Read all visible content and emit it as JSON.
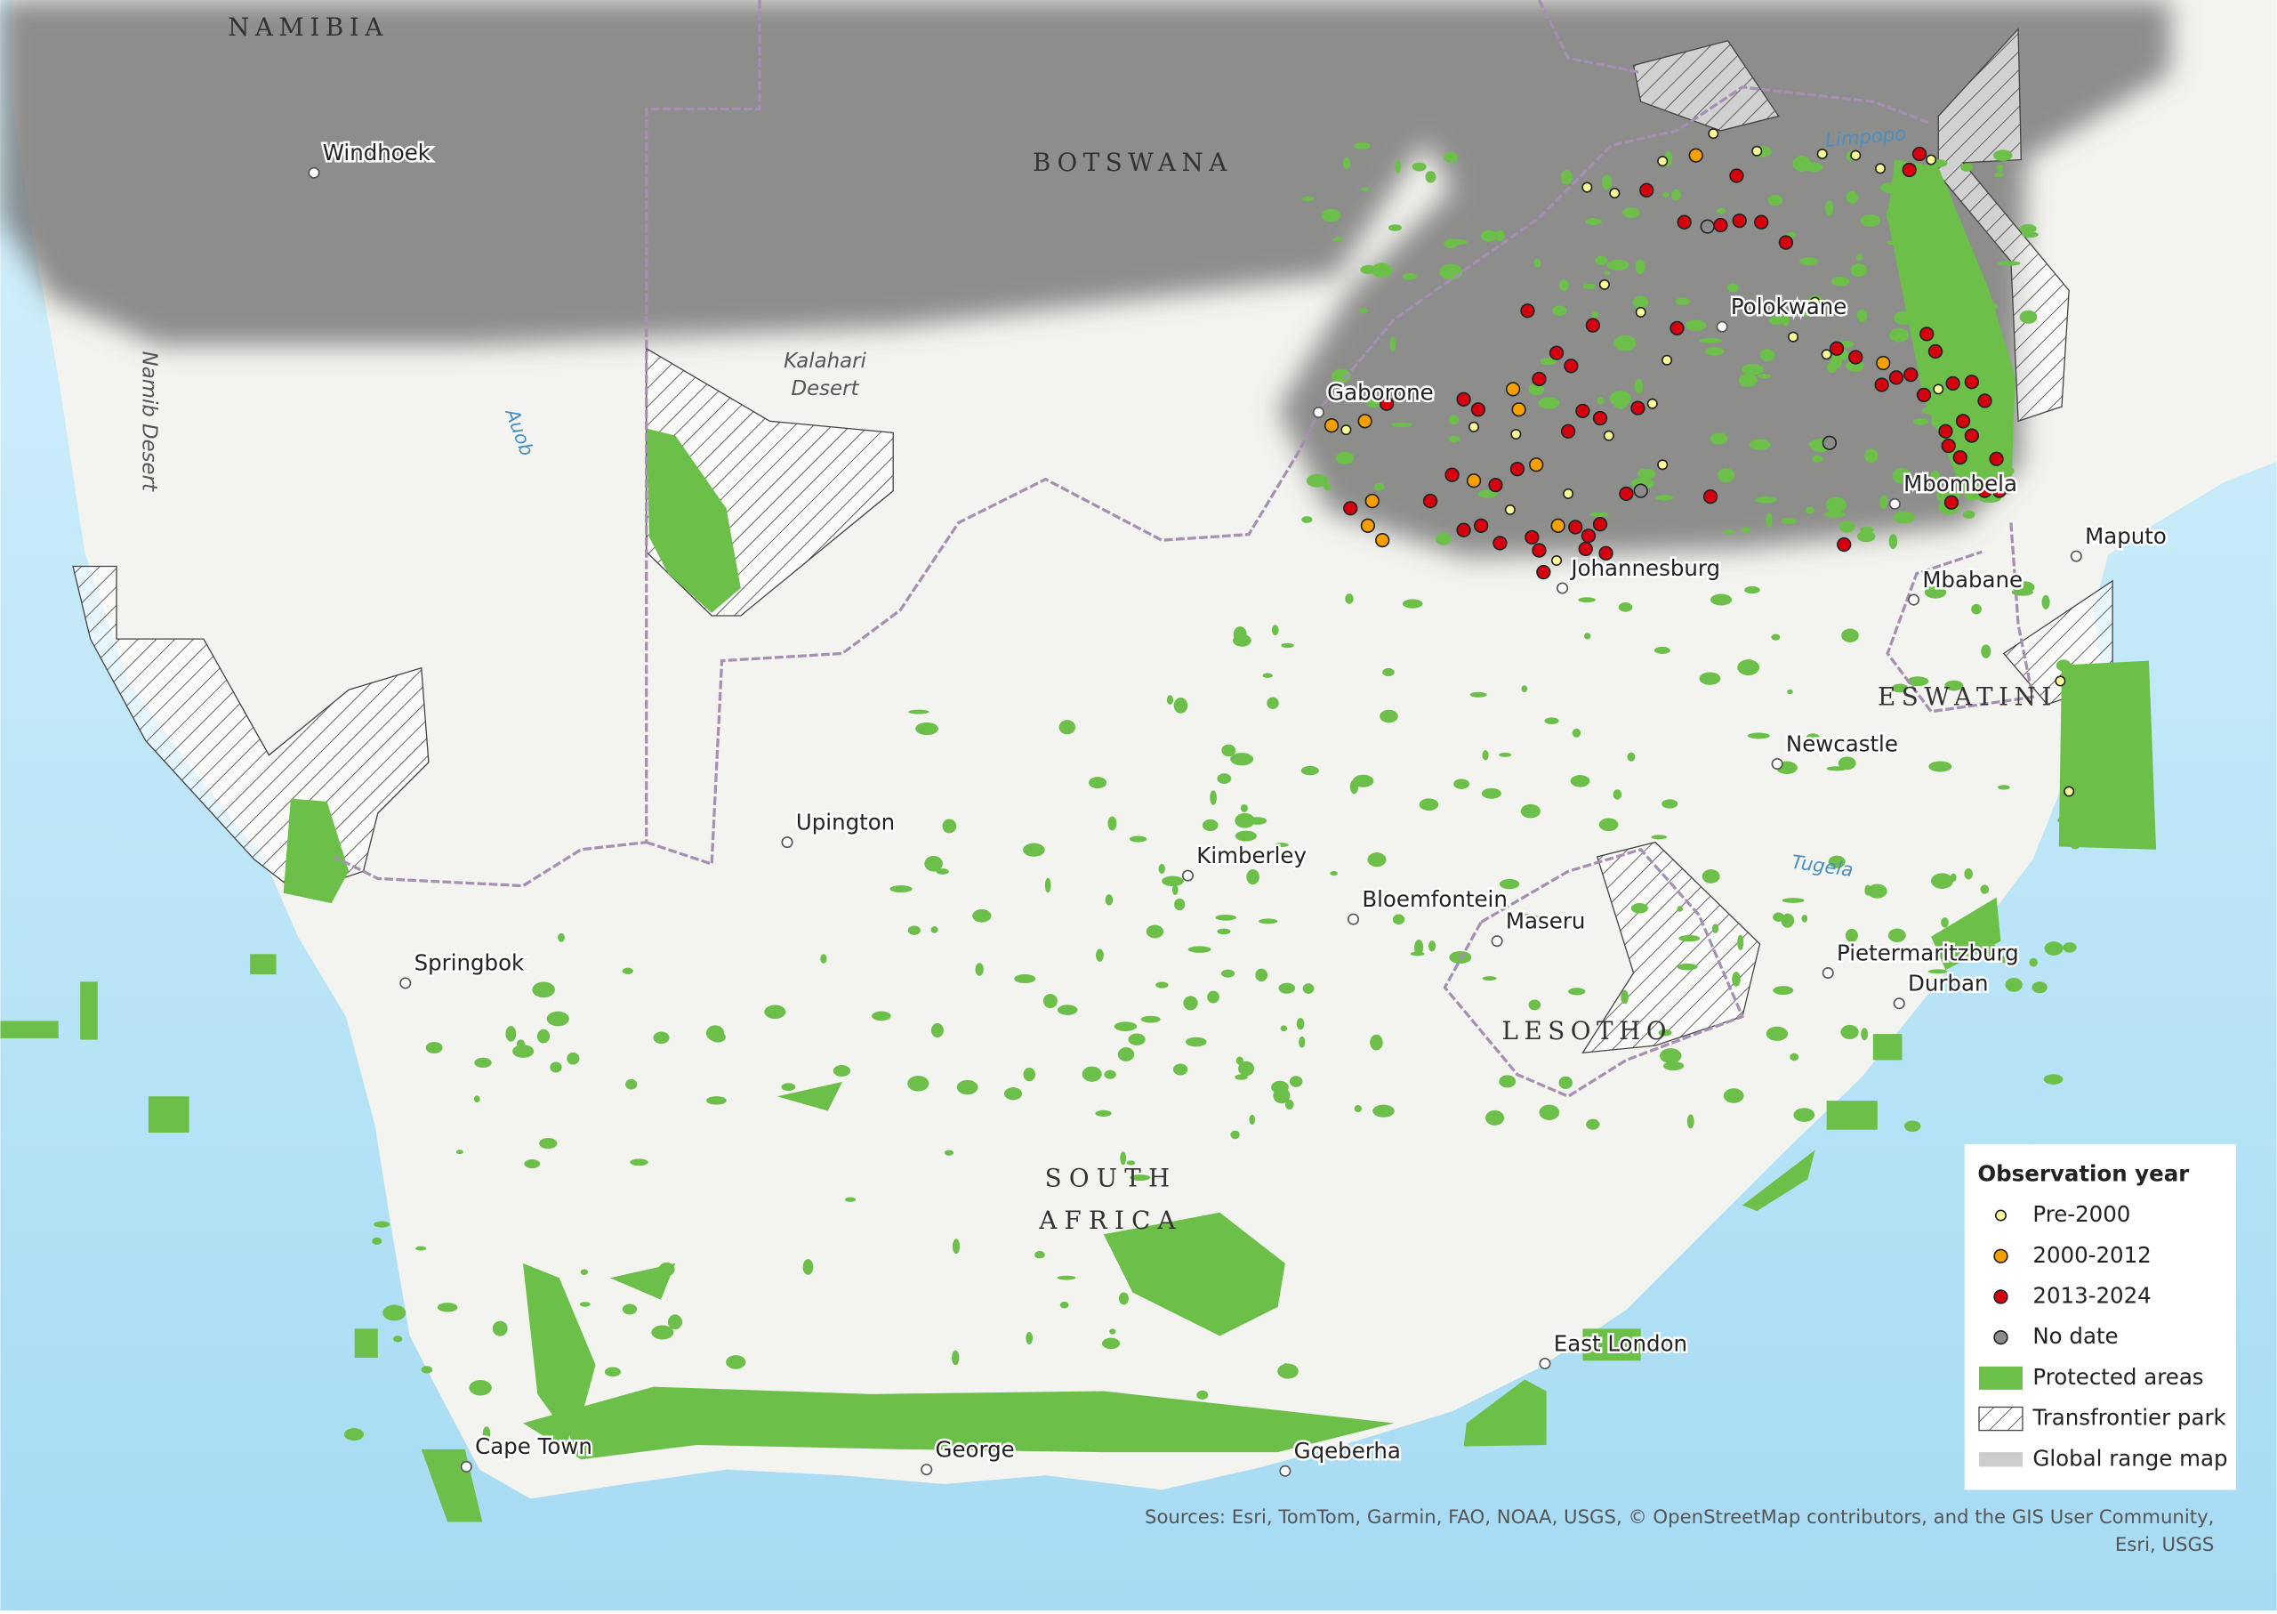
{
  "map": {
    "countries": [
      "NAMIBIA",
      "BOTSWANA",
      "SOUTH AFRICA",
      "LESOTHO",
      "ESWATINI"
    ],
    "cities": [
      "Windhoek",
      "Gaborone",
      "Polokwane",
      "Johannesburg",
      "Maputo",
      "Mbabane",
      "Mbombela",
      "Newcastle",
      "Upington",
      "Kimberley",
      "Bloemfontein",
      "Maseru",
      "Springbok",
      "Pietermaritzburg",
      "Durban",
      "East London",
      "Cape Town",
      "George",
      "Gqeberha"
    ],
    "features": [
      "Kalahari Desert",
      "Namib Desert",
      "Auob",
      "Limpopo",
      "Tugela"
    ],
    "legend": {
      "title": "Observation year",
      "items": [
        {
          "label": "Pre-2000",
          "color": "#ffff99"
        },
        {
          "label": "2000-2012",
          "color": "#f5a000"
        },
        {
          "label": "2013-2024",
          "color": "#d7000f"
        },
        {
          "label": "No date",
          "color": "#8c8c8c"
        },
        {
          "label": "Protected areas",
          "color": "#6cc04a"
        },
        {
          "label": "Transfrontier park"
        },
        {
          "label": "Global range map",
          "color": "#9a9a9a"
        }
      ]
    },
    "attribution": "Sources: Esri, TomTom, Garmin, FAO, NOAA, USGS, © OpenStreetMap contributors, and the GIS User Community, Esri, USGS"
  }
}
